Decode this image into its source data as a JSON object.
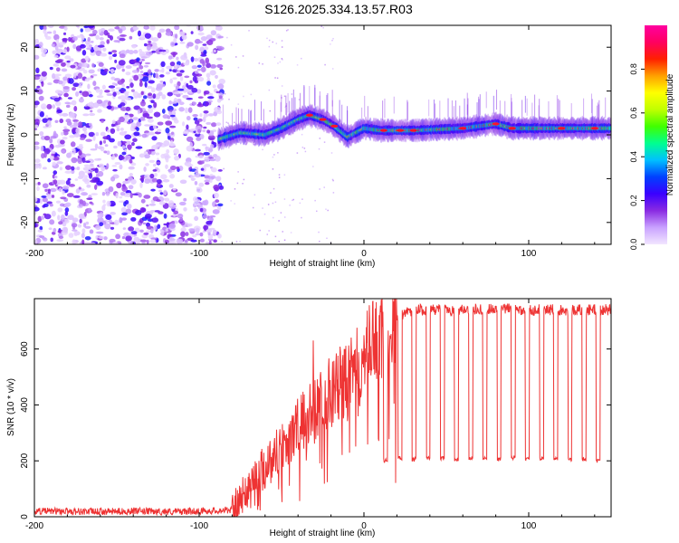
{
  "title": "S126.2025.334.13.57.R03",
  "chart_data": [
    {
      "type": "heatmap",
      "xlabel": "Height of straight line (km)",
      "ylabel": "Frequency (Hz)",
      "xlim": [
        -200,
        150
      ],
      "ylim": [
        -25,
        25
      ],
      "x_ticks": [
        -200,
        -100,
        0,
        100
      ],
      "y_ticks": [
        -20,
        -10,
        0,
        10,
        20
      ],
      "colorbar": {
        "label": "Normalized spectral amplitude",
        "range": [
          0,
          1
        ],
        "ticks": [
          0.0,
          0.2,
          0.4,
          0.6,
          0.8
        ],
        "tick_labels": [
          "0.0",
          "0.2",
          "0.4",
          "0.6",
          "0.8"
        ],
        "colormap": [
          "#f2e6ff",
          "#c9a2ff",
          "#8a2be2",
          "#3a00ff",
          "#0040ff",
          "#00c0ff",
          "#00ff90",
          "#40ff00",
          "#c0ff00",
          "#ffff00",
          "#ffa000",
          "#ff2000",
          "#ff0060",
          "#ff00a0"
        ]
      },
      "noise_region_x": [
        -200,
        -88
      ],
      "signal_ridge": {
        "x": [
          -88,
          -75,
          -60,
          -50,
          -40,
          -33,
          -25,
          -18,
          -10,
          -5,
          0,
          10,
          30,
          60,
          80,
          90,
          100,
          120,
          150
        ],
        "frequency": [
          -1,
          0.5,
          0,
          1.5,
          3.5,
          4.5,
          3.5,
          2,
          -0.5,
          0.5,
          1.5,
          1,
          1,
          1.5,
          2.5,
          1.5,
          1.5,
          1.5,
          1.5
        ]
      }
    },
    {
      "type": "line",
      "xlabel": "Height of straight line (km)",
      "ylabel": "SNR (10 * v/v)",
      "xlim": [
        -200,
        150
      ],
      "ylim": [
        0,
        780
      ],
      "x_ticks": [
        -200,
        -100,
        0,
        100
      ],
      "y_ticks": [
        0,
        200,
        400,
        600
      ],
      "color": "#ee3333",
      "series": [
        {
          "x": [
            -200,
            -180,
            -160,
            -140,
            -120,
            -100,
            -90,
            -80,
            -75,
            -70,
            -60,
            -50,
            -40,
            -30,
            -25,
            -20,
            -15,
            -10,
            -5,
            0,
            5,
            10,
            15,
            20,
            25,
            30,
            40,
            60,
            80,
            100,
            120,
            150
          ],
          "values": [
            20,
            20,
            18,
            20,
            18,
            20,
            22,
            25,
            60,
            110,
            180,
            250,
            320,
            380,
            430,
            450,
            470,
            480,
            520,
            560,
            620,
            650,
            690,
            710,
            730,
            740,
            740,
            740,
            745,
            740,
            740,
            740
          ]
        }
      ],
      "dropouts": {
        "start_x": 12,
        "spacing_x": 8.6,
        "count": 16,
        "floor_values": [
          200,
          210,
          205,
          210,
          208,
          205,
          210,
          210,
          205,
          210,
          205,
          208,
          210,
          205,
          205,
          200
        ]
      },
      "spikes": [
        {
          "x": -30.8,
          "value": 630
        },
        {
          "x": -12,
          "value": 600
        },
        {
          "x": 4,
          "value": 610
        }
      ]
    }
  ]
}
